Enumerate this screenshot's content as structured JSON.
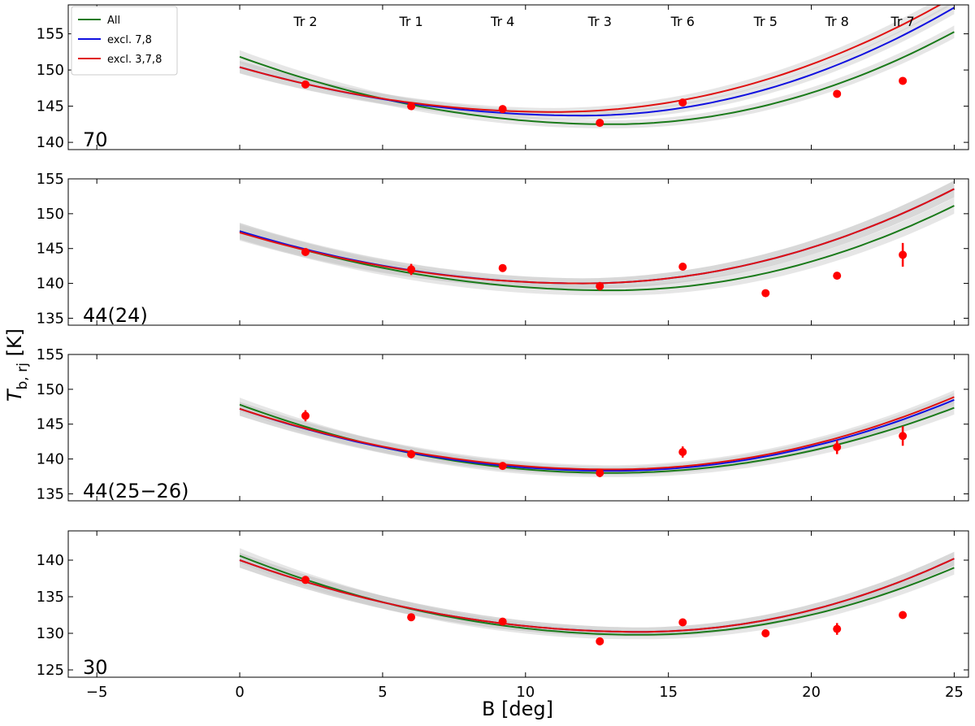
{
  "chart_data": {
    "type": "line",
    "xlabel": "B [deg]",
    "ylabel_main": "T",
    "ylabel_sub": "b, rj",
    "ylabel_unit": " [K]",
    "xlim": [
      -6,
      25.5
    ],
    "xticks": [
      -5,
      0,
      5,
      10,
      15,
      20,
      25
    ],
    "xtick_labels": [
      "−5",
      "0",
      "5",
      "10",
      "15",
      "20",
      "25"
    ],
    "legend": [
      {
        "label": "All",
        "color": "#1a7a1a"
      },
      {
        "label": "excl. 7,8",
        "color": "#1010e0"
      },
      {
        "label": "excl. 3,7,8",
        "color": "#e01010"
      }
    ],
    "transit_labels": [
      {
        "x": 2.3,
        "label": "Tr 2"
      },
      {
        "x": 6.0,
        "label": "Tr 1"
      },
      {
        "x": 9.2,
        "label": "Tr 4"
      },
      {
        "x": 12.6,
        "label": "Tr 3"
      },
      {
        "x": 15.5,
        "label": "Tr 6"
      },
      {
        "x": 18.4,
        "label": "Tr 5"
      },
      {
        "x": 20.9,
        "label": "Tr 8"
      },
      {
        "x": 23.2,
        "label": "Tr 7"
      }
    ],
    "panels": [
      {
        "label": "70",
        "ylim": [
          139,
          159
        ],
        "yticks": [
          140,
          145,
          150,
          155
        ],
        "band_halfwidth": 0.9,
        "series": [
          {
            "name": "All",
            "color": "#1a7a1a",
            "x0": 13.0,
            "ymin": 142.5,
            "a0": 0.0552,
            "a1": 0.0887
          },
          {
            "name": "excl. 7,8",
            "color": "#1010e0",
            "x0": 12.0,
            "ymin": 143.7,
            "a0": 0.0465,
            "a1": 0.0883
          },
          {
            "name": "excl. 3,7,8",
            "color": "#e01010",
            "x0": 11.0,
            "ymin": 144.2,
            "a0": 0.0512,
            "a1": 0.0812
          }
        ],
        "points": [
          {
            "x": 2.3,
            "y": 148.0,
            "err": 0.3
          },
          {
            "x": 6.0,
            "y": 145.0,
            "err": 0.3
          },
          {
            "x": 9.2,
            "y": 144.6,
            "err": 0.3
          },
          {
            "x": 12.6,
            "y": 142.7,
            "err": 0.3
          },
          {
            "x": 15.5,
            "y": 145.5,
            "err": 0.3
          },
          {
            "x": 20.9,
            "y": 146.7,
            "err": 0.3
          },
          {
            "x": 23.2,
            "y": 148.5,
            "err": 0.3
          }
        ]
      },
      {
        "label": "44(24)",
        "ylim": [
          134,
          155
        ],
        "yticks": [
          135,
          140,
          145,
          150,
          155
        ],
        "band_halfwidth": 1.2,
        "series": [
          {
            "name": "All",
            "color": "#1a7a1a",
            "x0": 13.0,
            "ymin": 139.0,
            "a0": 0.0503,
            "a1": 0.0844
          },
          {
            "name": "excl. 7,8",
            "color": "#1010e0",
            "x0": 12.0,
            "ymin": 140.0,
            "a0": 0.0521,
            "a1": 0.0802
          },
          {
            "name": "excl. 3,7,8",
            "color": "#e01010",
            "x0": 12.0,
            "ymin": 140.0,
            "a0": 0.0507,
            "a1": 0.0802
          }
        ],
        "points": [
          {
            "x": 2.3,
            "y": 144.5,
            "err": 0.3
          },
          {
            "x": 6.0,
            "y": 142.0,
            "err": 0.8
          },
          {
            "x": 9.2,
            "y": 142.2,
            "err": 0.3
          },
          {
            "x": 12.6,
            "y": 139.6,
            "err": 0.6
          },
          {
            "x": 15.5,
            "y": 142.4,
            "err": 0.3
          },
          {
            "x": 18.4,
            "y": 138.6,
            "err": 0.3
          },
          {
            "x": 20.9,
            "y": 141.1,
            "err": 0.3
          },
          {
            "x": 23.2,
            "y": 144.1,
            "err": 1.7
          }
        ]
      },
      {
        "label": "44(25−26)",
        "ylim": [
          134,
          155
        ],
        "yticks": [
          135,
          140,
          145,
          150,
          155
        ],
        "band_halfwidth": 1.0,
        "series": [
          {
            "name": "All",
            "color": "#1a7a1a",
            "x0": 13.0,
            "ymin": 138.0,
            "a0": 0.058,
            "a1": 0.0649
          },
          {
            "name": "excl. 7,8",
            "color": "#1010e0",
            "x0": 13.0,
            "ymin": 138.3,
            "a0": 0.0527,
            "a1": 0.0708
          },
          {
            "name": "excl. 3,7,8",
            "color": "#e01010",
            "x0": 13.0,
            "ymin": 138.5,
            "a0": 0.0515,
            "a1": 0.0722
          }
        ],
        "points": [
          {
            "x": 2.3,
            "y": 146.2,
            "err": 0.8
          },
          {
            "x": 6.0,
            "y": 140.7,
            "err": 0.6
          },
          {
            "x": 9.2,
            "y": 139.0,
            "err": 0.3
          },
          {
            "x": 12.6,
            "y": 138.0,
            "err": 0.6
          },
          {
            "x": 15.5,
            "y": 141.0,
            "err": 0.8
          },
          {
            "x": 20.9,
            "y": 141.7,
            "err": 1.0
          },
          {
            "x": 23.2,
            "y": 143.3,
            "err": 1.4
          }
        ]
      },
      {
        "label": "30",
        "ylim": [
          124,
          144
        ],
        "yticks": [
          125,
          130,
          135,
          140
        ],
        "band_halfwidth": 1.0,
        "series": [
          {
            "name": "All",
            "color": "#1a7a1a",
            "x0": 14.0,
            "ymin": 129.8,
            "a0": 0.0551,
            "a1": 0.0758
          },
          {
            "name": "excl. 7,8",
            "color": "#1010e0",
            "x0": 14.0,
            "ymin": 130.2,
            "a0": 0.05,
            "a1": 0.0827
          },
          {
            "name": "excl. 3,7,8",
            "color": "#e01010",
            "x0": 14.0,
            "ymin": 130.2,
            "a0": 0.05,
            "a1": 0.0827
          }
        ],
        "points": [
          {
            "x": 2.3,
            "y": 137.3,
            "err": 0.3
          },
          {
            "x": 6.0,
            "y": 132.2,
            "err": 0.3
          },
          {
            "x": 9.2,
            "y": 131.6,
            "err": 0.3
          },
          {
            "x": 12.6,
            "y": 128.9,
            "err": 0.3
          },
          {
            "x": 15.5,
            "y": 131.5,
            "err": 0.3
          },
          {
            "x": 18.4,
            "y": 130.0,
            "err": 0.4
          },
          {
            "x": 20.9,
            "y": 130.6,
            "err": 0.8
          },
          {
            "x": 23.2,
            "y": 132.5,
            "err": 0.5
          }
        ]
      }
    ]
  }
}
